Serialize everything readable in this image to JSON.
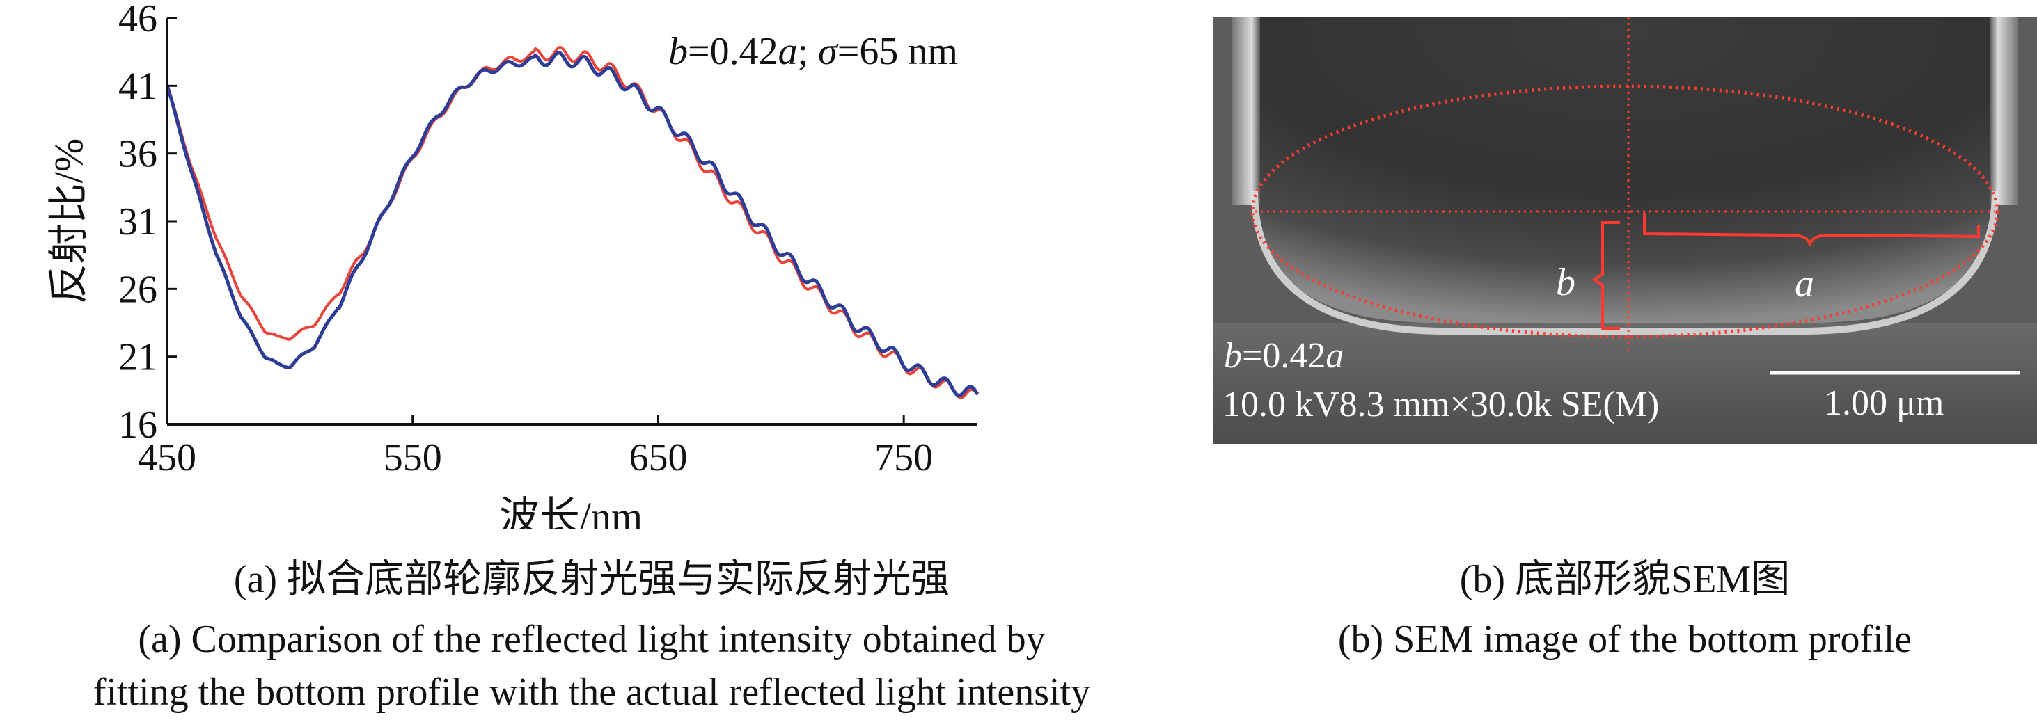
{
  "chart_data": {
    "type": "line",
    "title": "",
    "xlabel": "波长/nm",
    "ylabel": "反射比/%",
    "xlim": [
      450,
      780
    ],
    "ylim": [
      16,
      46
    ],
    "x_ticks": [
      450,
      550,
      650,
      750
    ],
    "y_ticks": [
      16,
      21,
      26,
      31,
      36,
      41,
      46
    ],
    "annotation": {
      "b": "b",
      "eq1": "=0.42",
      "a": "a",
      "sep": "; ",
      "sigma": "σ",
      "eq2": "=65 nm"
    },
    "series": [
      {
        "color": "#e8443a",
        "x": [
          450,
          460,
          470,
          480,
          490,
          495,
          500,
          510,
          520,
          530,
          540,
          550,
          560,
          570,
          580,
          590,
          600,
          610,
          620,
          630,
          640,
          650,
          660,
          670,
          680,
          690,
          700,
          710,
          720,
          730,
          740,
          750,
          760,
          770,
          780
        ],
        "y": [
          41,
          35,
          29.8,
          25.6,
          22.9,
          22.4,
          22.4,
          23.4,
          25.8,
          28.8,
          32.2,
          35.7,
          38.6,
          40.8,
          42.2,
          42.9,
          43.3,
          43.4,
          43.1,
          42.3,
          40.9,
          39.1,
          37.0,
          34.8,
          32.6,
          30.5,
          28.4,
          26.5,
          24.8,
          23.1,
          21.7,
          20.4,
          19.4,
          18.6,
          18.0
        ]
      },
      {
        "color": "#2e3d96",
        "x": [
          450,
          460,
          470,
          480,
          490,
          495,
          500,
          510,
          520,
          530,
          540,
          550,
          560,
          570,
          580,
          590,
          600,
          610,
          620,
          630,
          640,
          650,
          660,
          670,
          680,
          690,
          700,
          710,
          720,
          730,
          740,
          750,
          760,
          770,
          780
        ],
        "y": [
          41,
          34.6,
          28.6,
          24.0,
          21.0,
          20.4,
          20.3,
          21.8,
          24.8,
          28.5,
          32.3,
          35.9,
          38.8,
          40.9,
          42.1,
          42.6,
          42.9,
          43.0,
          42.7,
          41.9,
          40.7,
          39.1,
          37.3,
          35.3,
          33.1,
          30.9,
          28.8,
          26.9,
          25.1,
          23.4,
          22.0,
          20.6,
          19.5,
          18.7,
          18.2
        ]
      }
    ]
  },
  "sem": {
    "b_label": "b",
    "a_label": "a",
    "ratio_b": "b",
    "ratio_rest": "=0.42",
    "ratio_a": "a",
    "info": "10.0 kV8.3 mm×30.0k SE(M)",
    "scale": "1.00 μm"
  },
  "captions": {
    "a_cn": "(a) 拟合底部轮廓反射光强与实际反射光强",
    "a_en_1": "(a) Comparison of the reflected light intensity obtained by",
    "a_en_2": "fitting the bottom profile with the actual reflected light intensity",
    "b_cn": "(b) 底部形貌SEM图",
    "b_en": "(b) SEM image of the bottom profile"
  }
}
